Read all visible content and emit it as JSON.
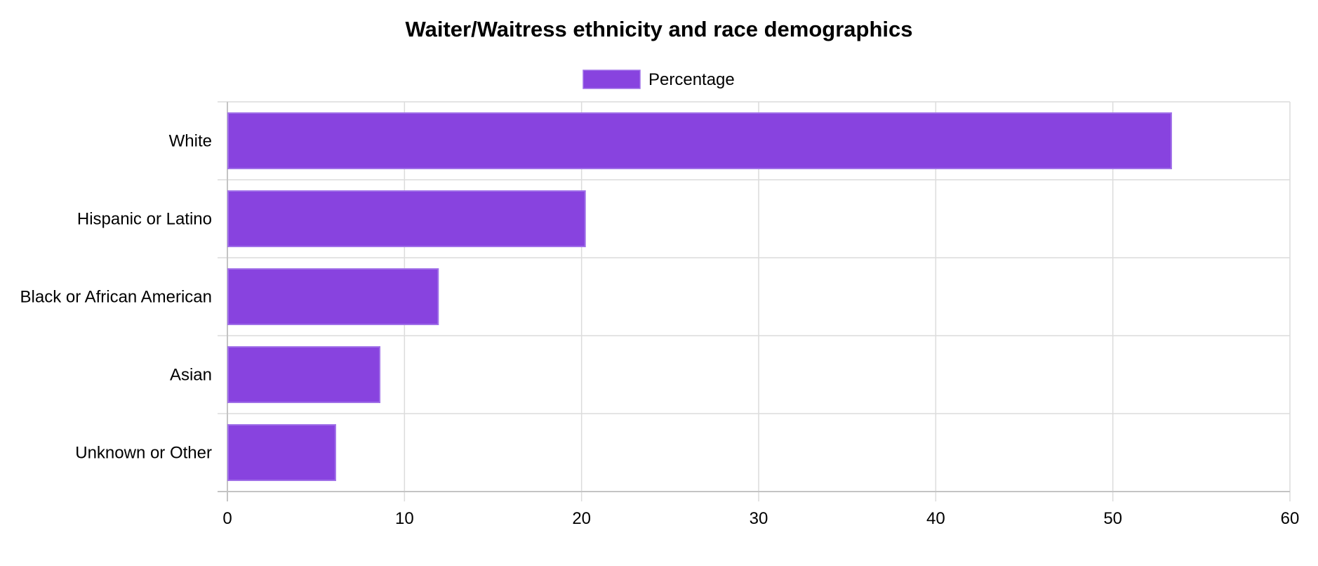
{
  "chart_data": {
    "type": "bar",
    "orientation": "horizontal",
    "title": "Waiter/Waitress ethnicity and race demographics",
    "categories": [
      "White",
      "Hispanic or Latino",
      "Black or African American",
      "Asian",
      "Unknown or Other"
    ],
    "series": [
      {
        "name": "Percentage",
        "values": [
          53.3,
          20.2,
          11.9,
          8.6,
          6.1
        ],
        "color": "#8843df",
        "border_color": "#a070e8"
      }
    ],
    "xlim": [
      0,
      60
    ],
    "x_ticks": [
      "0",
      "10",
      "20",
      "30",
      "40",
      "50",
      "60"
    ],
    "xlabel": "",
    "ylabel": "",
    "grid": true,
    "legend_position": "top-center"
  }
}
